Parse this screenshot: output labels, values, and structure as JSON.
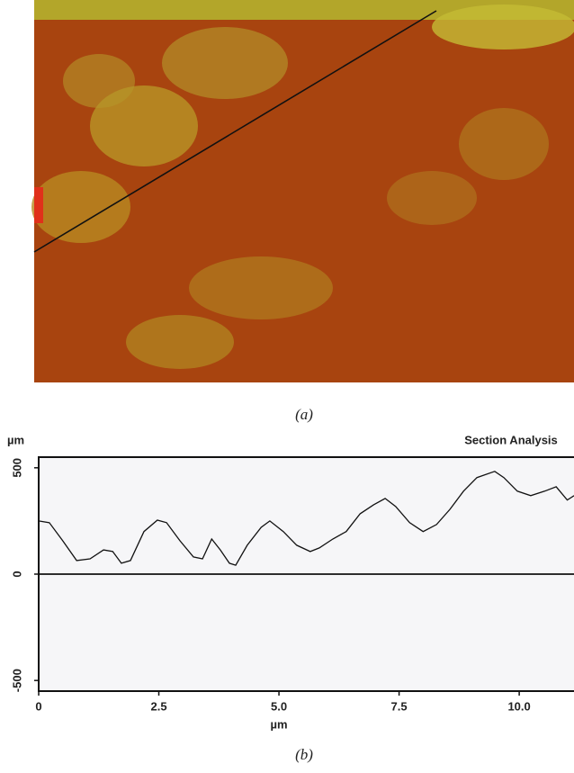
{
  "captions": [
    "(a)",
    "(b)"
  ],
  "chart_data": {
    "type": "line",
    "title": "Section Analysis",
    "ylabel": "µm",
    "xlabel": "µm",
    "x": [
      0,
      0.22,
      0.5,
      0.79,
      1.07,
      1.35,
      1.54,
      1.72,
      1.91,
      2.19,
      2.47,
      2.66,
      2.94,
      3.22,
      3.41,
      3.6,
      3.78,
      3.97,
      4.1,
      4.34,
      4.63,
      4.81,
      5.09,
      5.37,
      5.65,
      5.84,
      6.12,
      6.4,
      6.69,
      6.97,
      7.21,
      7.43,
      7.72,
      8.0,
      8.28,
      8.56,
      8.84,
      9.12,
      9.49,
      9.68,
      9.96,
      10.24,
      10.53,
      10.77,
      11.0,
      11.14
    ],
    "series": [
      {
        "color": "#111111",
        "values": [
          250,
          242,
          157,
          64,
          72,
          114,
          106,
          51,
          64,
          200,
          254,
          242,
          157,
          81,
          72,
          165,
          114,
          51,
          42,
          136,
          220,
          250,
          200,
          136,
          106,
          123,
          165,
          200,
          284,
          326,
          356,
          318,
          242,
          200,
          233,
          305,
          390,
          454,
          483,
          454,
          390,
          369,
          390,
          411,
          348,
          369
        ]
      }
    ],
    "xlim": [
      0,
      11.14
    ],
    "xticks": [
      0,
      2.5,
      {
        "value": 5,
        "label": "5.0"
      },
      7.5,
      {
        "value": 10,
        "label": "10.0"
      }
    ],
    "ylim": [
      -550,
      550
    ],
    "yticks": [
      500,
      0,
      -500
    ]
  }
}
